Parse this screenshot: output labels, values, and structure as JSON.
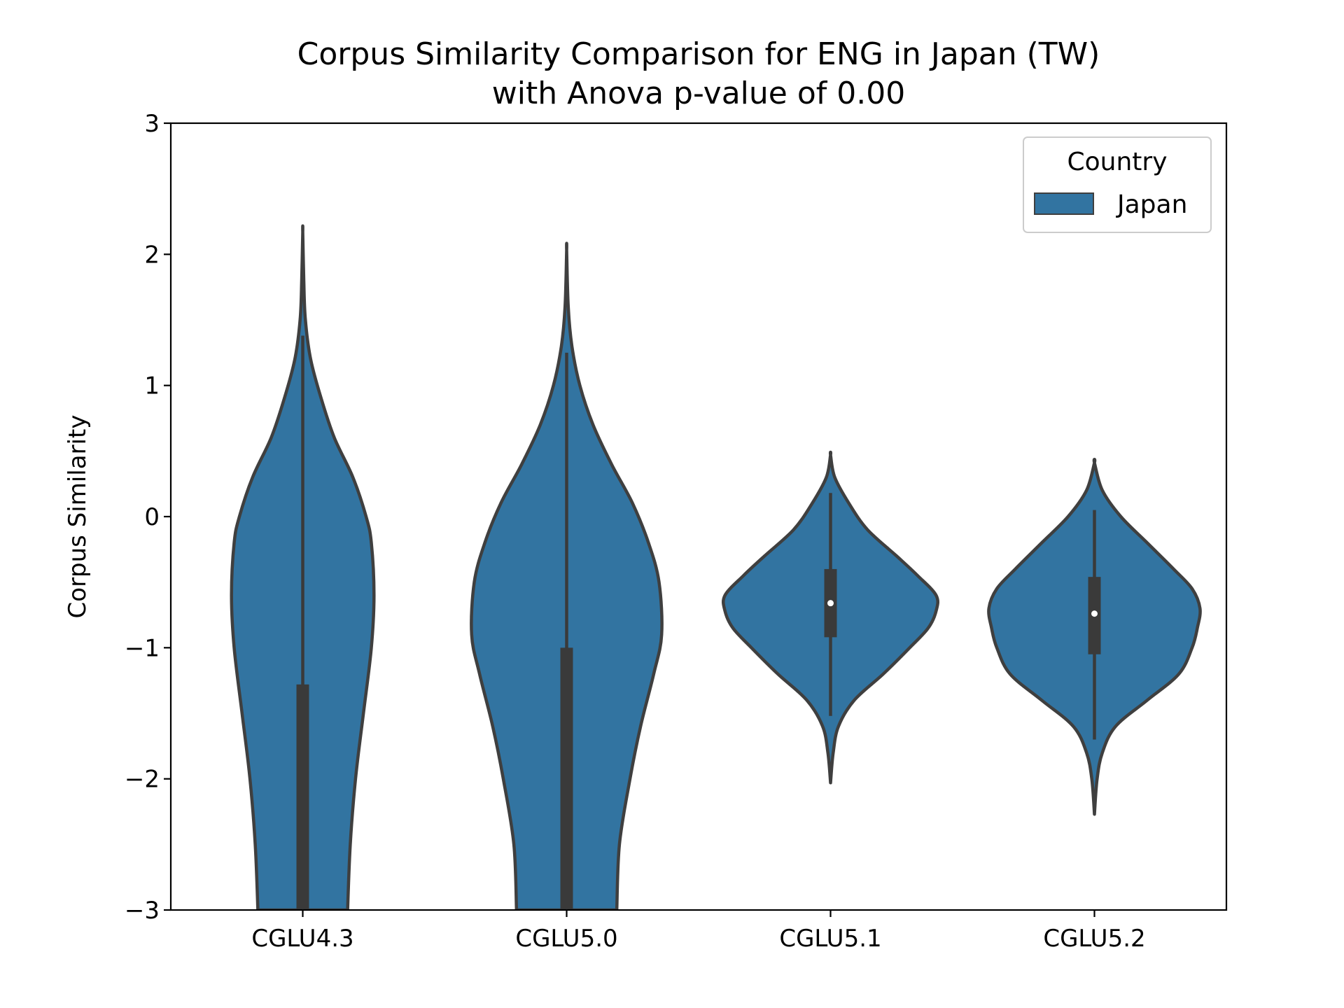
{
  "chart_data": {
    "type": "violin",
    "title": "Corpus Similarity Comparison for ENG in Japan (TW)",
    "subtitle": "with Anova p-value of 0.00",
    "xlabel": "",
    "ylabel": "Corpus Similarity",
    "ylim": [
      -3,
      3
    ],
    "yticks": [
      -3,
      -2,
      -1,
      0,
      1,
      2,
      3
    ],
    "ytick_labels": [
      "−3",
      "−2",
      "−1",
      "0",
      "1",
      "2",
      "3"
    ],
    "categories": [
      "CGLU4.3",
      "CGLU5.0",
      "CGLU5.1",
      "CGLU5.2"
    ],
    "legend": {
      "title": "Country",
      "entries": [
        "Japan"
      ],
      "position": "top-right"
    },
    "colors": {
      "fill": "#3274a1",
      "edge": "#3f3f3f",
      "box": "#3a3a3a",
      "median": "#ffffff"
    },
    "series": [
      {
        "name": "Japan",
        "violins": [
          {
            "category": "CGLU4.3",
            "max": 2.17,
            "min": -3.0,
            "whisker_high": 1.38,
            "whisker_low": -3.0,
            "q1": -3.0,
            "median": -3.0,
            "q3": -1.28,
            "profile": [
              [
                -3.0,
                0.085
              ],
              [
                -2.5,
                0.09
              ],
              [
                -2.0,
                0.1
              ],
              [
                -1.5,
                0.115
              ],
              [
                -1.0,
                0.13
              ],
              [
                -0.6,
                0.135
              ],
              [
                -0.2,
                0.13
              ],
              [
                0.0,
                0.12
              ],
              [
                0.3,
                0.095
              ],
              [
                0.6,
                0.06
              ],
              [
                0.9,
                0.035
              ],
              [
                1.2,
                0.015
              ],
              [
                1.5,
                0.005
              ],
              [
                1.8,
                0.002
              ],
              [
                2.17,
                0.0
              ]
            ]
          },
          {
            "category": "CGLU5.0",
            "max": 2.03,
            "min": -3.0,
            "whisker_high": 1.25,
            "whisker_low": -3.0,
            "q1": -3.0,
            "median": -3.0,
            "q3": -1.0,
            "profile": [
              [
                -3.0,
                0.095
              ],
              [
                -2.5,
                0.1
              ],
              [
                -2.0,
                0.12
              ],
              [
                -1.6,
                0.14
              ],
              [
                -1.2,
                0.165
              ],
              [
                -0.9,
                0.18
              ],
              [
                -0.5,
                0.175
              ],
              [
                -0.2,
                0.155
              ],
              [
                0.1,
                0.125
              ],
              [
                0.4,
                0.085
              ],
              [
                0.7,
                0.05
              ],
              [
                1.0,
                0.025
              ],
              [
                1.3,
                0.01
              ],
              [
                1.6,
                0.003
              ],
              [
                2.03,
                0.0
              ]
            ]
          },
          {
            "category": "CGLU5.1",
            "max": 0.47,
            "min": -2.03,
            "whisker_high": 0.18,
            "whisker_low": -1.52,
            "q1": -0.92,
            "median": -0.66,
            "q3": -0.4,
            "profile": [
              [
                -2.03,
                0.0
              ],
              [
                -1.8,
                0.005
              ],
              [
                -1.6,
                0.015
              ],
              [
                -1.4,
                0.045
              ],
              [
                -1.2,
                0.1
              ],
              [
                -1.0,
                0.15
              ],
              [
                -0.85,
                0.185
              ],
              [
                -0.72,
                0.2
              ],
              [
                -0.6,
                0.2
              ],
              [
                -0.45,
                0.165
              ],
              [
                -0.3,
                0.125
              ],
              [
                -0.1,
                0.07
              ],
              [
                0.1,
                0.035
              ],
              [
                0.3,
                0.008
              ],
              [
                0.47,
                0.0
              ]
            ]
          },
          {
            "category": "CGLU5.2",
            "max": 0.41,
            "min": -2.27,
            "whisker_high": 0.05,
            "whisker_low": -1.7,
            "q1": -1.05,
            "median": -0.74,
            "q3": -0.46,
            "profile": [
              [
                -2.27,
                0.0
              ],
              [
                -2.0,
                0.005
              ],
              [
                -1.8,
                0.015
              ],
              [
                -1.6,
                0.04
              ],
              [
                -1.4,
                0.1
              ],
              [
                -1.2,
                0.16
              ],
              [
                -1.0,
                0.185
              ],
              [
                -0.85,
                0.195
              ],
              [
                -0.7,
                0.2
              ],
              [
                -0.55,
                0.185
              ],
              [
                -0.4,
                0.15
              ],
              [
                -0.2,
                0.1
              ],
              [
                0.0,
                0.05
              ],
              [
                0.2,
                0.015
              ],
              [
                0.41,
                0.0
              ]
            ]
          }
        ]
      }
    ]
  }
}
